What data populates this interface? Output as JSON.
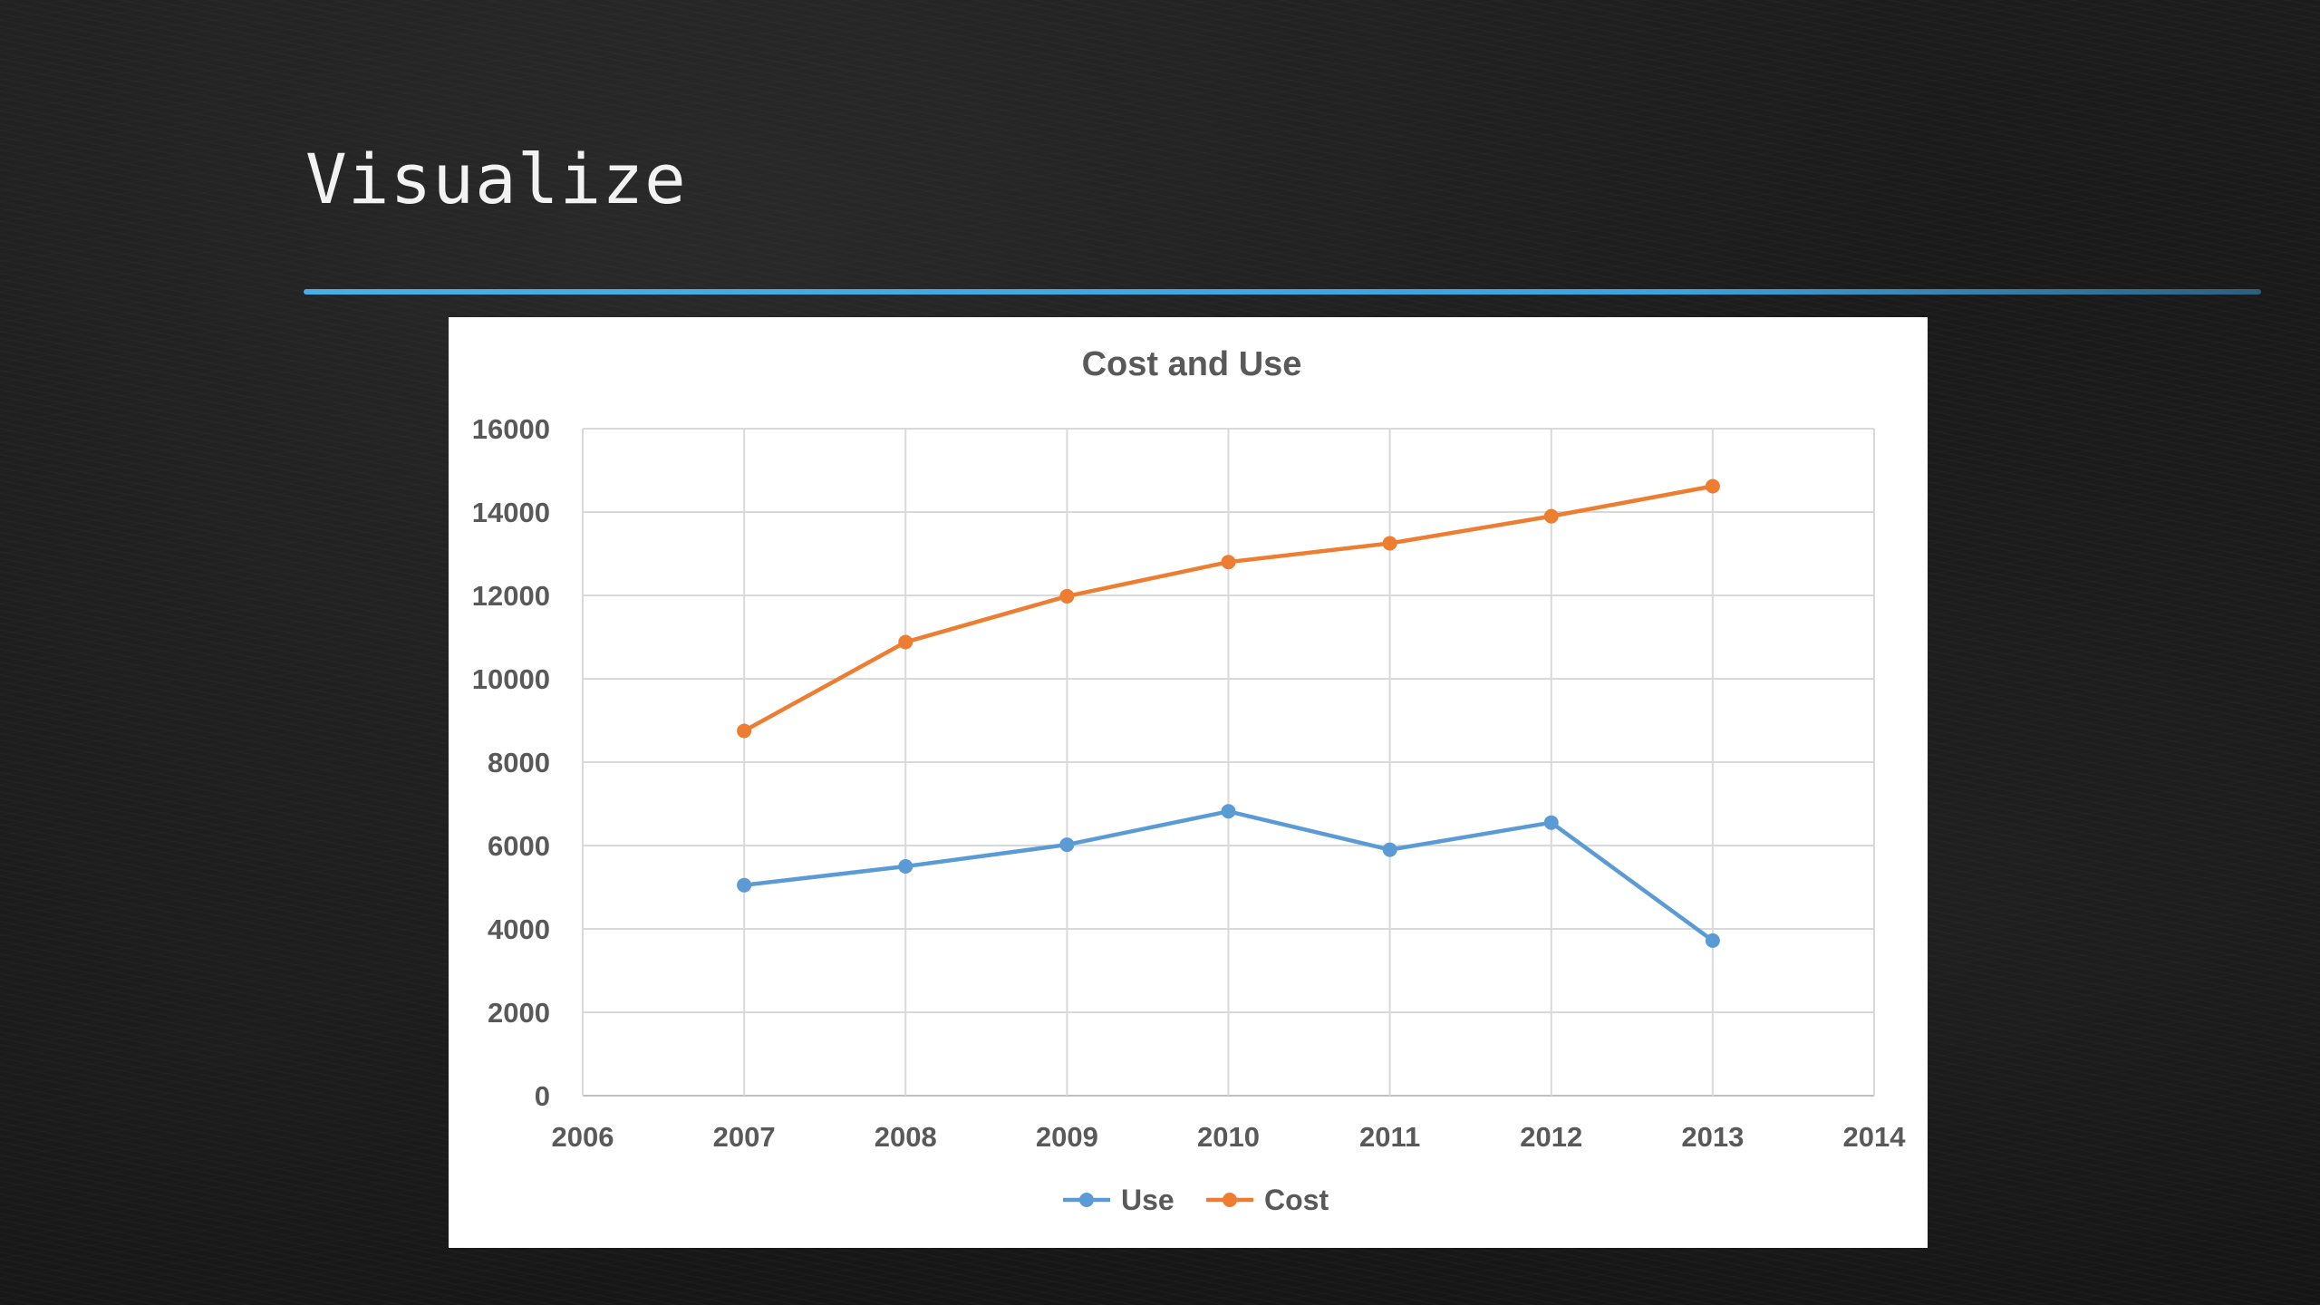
{
  "slide": {
    "title": "Visualize",
    "accent_color": "#3ea3dd"
  },
  "chart_data": {
    "type": "scatter",
    "title": "Cost and Use",
    "xlabel": "",
    "ylabel": "",
    "xlim": [
      2006,
      2014
    ],
    "ylim": [
      0,
      16000
    ],
    "x_ticks": [
      2006,
      2007,
      2008,
      2009,
      2010,
      2011,
      2012,
      2013,
      2014
    ],
    "y_ticks": [
      0,
      2000,
      4000,
      6000,
      8000,
      10000,
      12000,
      14000,
      16000
    ],
    "grid": true,
    "legend_position": "bottom",
    "x": [
      2007,
      2008,
      2009,
      2010,
      2011,
      2012,
      2013
    ],
    "series": [
      {
        "name": "Use",
        "color": "#5b9bd5",
        "values": [
          5050,
          5500,
          6020,
          6820,
          5900,
          6550,
          3720
        ]
      },
      {
        "name": "Cost",
        "color": "#ed7d31",
        "values": [
          8750,
          10880,
          11980,
          12800,
          13250,
          13900,
          14620
        ]
      }
    ]
  }
}
